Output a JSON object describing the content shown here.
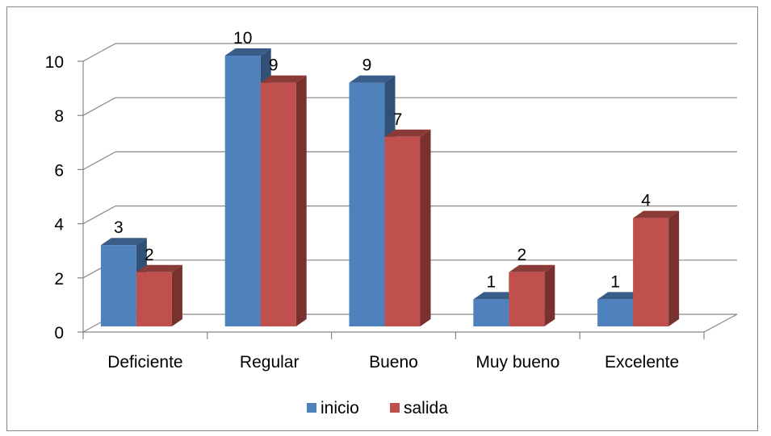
{
  "chart_data": {
    "type": "bar",
    "categories": [
      "Deficiente",
      "Regular",
      "Bueno",
      "Muy bueno",
      "Excelente"
    ],
    "series": [
      {
        "name": "inicio",
        "values": [
          3,
          10,
          9,
          1,
          1
        ],
        "color": "#4F81BD"
      },
      {
        "name": "salida",
        "values": [
          2,
          9,
          7,
          2,
          4
        ],
        "color": "#C0504D"
      }
    ],
    "yticks": [
      "0",
      "2",
      "4",
      "6",
      "8",
      "10"
    ],
    "ylim": [
      0,
      10
    ],
    "grid": true,
    "legend": "bottom",
    "data_labels": true
  }
}
